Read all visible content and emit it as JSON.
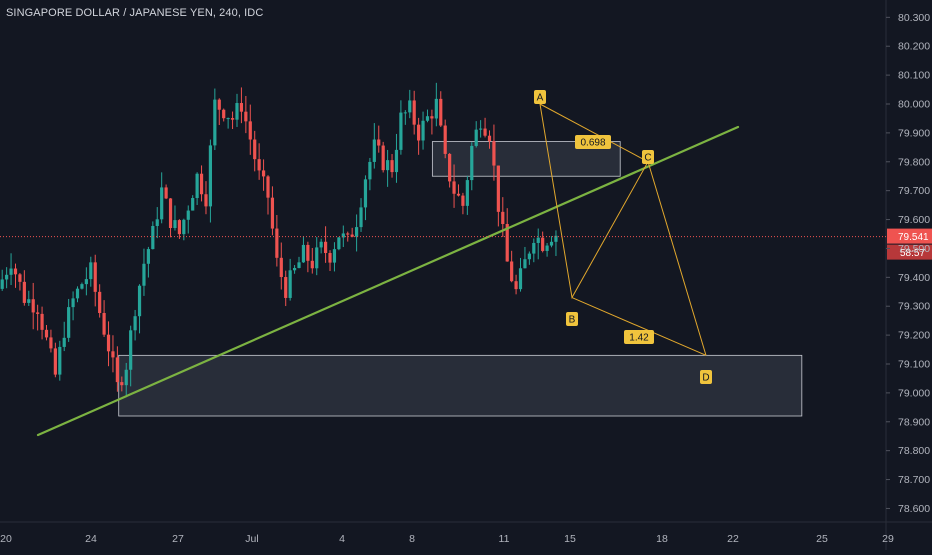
{
  "header": {
    "title": "SINGAPORE DOLLAR / JAPANESE YEN, 240, IDC"
  },
  "colors": {
    "background": "#131722",
    "bull": "#26a69a",
    "bear": "#ef5350",
    "trendline": "#7cb342",
    "pattern": "#e2a82d",
    "label_bg": "#f0c43d",
    "zone_fill": "#3a3f4c",
    "zone_border": "#c9ccd4",
    "axis_text": "#b2b5be",
    "badge": "#ef5350"
  },
  "chart_data": {
    "type": "candlestick",
    "title": "SINGAPORE DOLLAR / JAPANESE YEN, 240, IDC",
    "x_ticks": [
      "20",
      "24",
      "27",
      "Jul",
      "4",
      "8",
      "11",
      "15",
      "18",
      "22",
      "25",
      "29"
    ],
    "y_ticks": [
      "80.300",
      "80.200",
      "80.100",
      "80.000",
      "79.900",
      "79.800",
      "79.700",
      "79.600",
      "79.500",
      "79.400",
      "79.300",
      "79.200",
      "79.100",
      "79.000",
      "78.900",
      "78.800",
      "78.700",
      "78.600"
    ],
    "ylim": [
      78.56,
      80.36
    ],
    "last_price": {
      "value": 79.541,
      "label": "79.541",
      "countdown": "58:57"
    },
    "candles_visible_range": {
      "from": "Jun 19",
      "to": "Jul 16"
    },
    "overall_trend": [
      {
        "x": 0,
        "y": 79.36
      },
      {
        "x": 3,
        "y": 79.46
      },
      {
        "x": 6,
        "y": 79.33
      },
      {
        "x": 9,
        "y": 79.3
      },
      {
        "x": 11,
        "y": 79.18
      },
      {
        "x": 13,
        "y": 79.06
      },
      {
        "x": 15,
        "y": 79.22
      },
      {
        "x": 17,
        "y": 79.32
      },
      {
        "x": 19,
        "y": 79.38
      },
      {
        "x": 21,
        "y": 79.42
      },
      {
        "x": 23,
        "y": 79.28
      },
      {
        "x": 25,
        "y": 79.16
      },
      {
        "x": 27,
        "y": 79.02
      },
      {
        "x": 29,
        "y": 79.1
      },
      {
        "x": 31,
        "y": 79.3
      },
      {
        "x": 33,
        "y": 79.45
      },
      {
        "x": 35,
        "y": 79.55
      },
      {
        "x": 37,
        "y": 79.7
      },
      {
        "x": 39,
        "y": 79.6
      },
      {
        "x": 41,
        "y": 79.55
      },
      {
        "x": 43,
        "y": 79.65
      },
      {
        "x": 45,
        "y": 79.75
      },
      {
        "x": 47,
        "y": 79.68
      },
      {
        "x": 49,
        "y": 80.0
      },
      {
        "x": 51,
        "y": 79.98
      },
      {
        "x": 53,
        "y": 79.95
      },
      {
        "x": 55,
        "y": 80.0
      },
      {
        "x": 57,
        "y": 79.88
      },
      {
        "x": 59,
        "y": 79.75
      },
      {
        "x": 61,
        "y": 79.68
      },
      {
        "x": 63,
        "y": 79.45
      },
      {
        "x": 65,
        "y": 79.36
      },
      {
        "x": 67,
        "y": 79.42
      },
      {
        "x": 69,
        "y": 79.48
      },
      {
        "x": 71,
        "y": 79.45
      },
      {
        "x": 73,
        "y": 79.5
      },
      {
        "x": 75,
        "y": 79.48
      },
      {
        "x": 77,
        "y": 79.55
      },
      {
        "x": 79,
        "y": 79.52
      },
      {
        "x": 81,
        "y": 79.6
      },
      {
        "x": 83,
        "y": 79.75
      },
      {
        "x": 85,
        "y": 79.85
      },
      {
        "x": 87,
        "y": 79.8
      },
      {
        "x": 89,
        "y": 79.78
      },
      {
        "x": 91,
        "y": 79.95
      },
      {
        "x": 93,
        "y": 79.98
      },
      {
        "x": 95,
        "y": 79.9
      },
      {
        "x": 97,
        "y": 79.95
      },
      {
        "x": 99,
        "y": 80.0
      },
      {
        "x": 101,
        "y": 79.8
      },
      {
        "x": 103,
        "y": 79.7
      },
      {
        "x": 105,
        "y": 79.65
      },
      {
        "x": 107,
        "y": 79.85
      },
      {
        "x": 109,
        "y": 79.95
      },
      {
        "x": 111,
        "y": 79.9
      },
      {
        "x": 113,
        "y": 79.65
      },
      {
        "x": 115,
        "y": 79.45
      },
      {
        "x": 117,
        "y": 79.35
      },
      {
        "x": 119,
        "y": 79.45
      },
      {
        "x": 121,
        "y": 79.55
      },
      {
        "x": 123,
        "y": 79.52
      },
      {
        "x": 125,
        "y": 79.55
      }
    ],
    "trendline": {
      "x1": 0,
      "y1": 78.88,
      "x2": 200,
      "y2": 79.95
    },
    "zones": [
      {
        "name": "upper-zone",
        "x1": 97.6,
        "x2": 140,
        "y_top": 79.87,
        "y_bottom": 79.75
      },
      {
        "name": "lower-zone",
        "x1": 26.8,
        "x2": 181,
        "y_top": 79.13,
        "y_bottom": 78.92
      }
    ],
    "harmonic_pattern": {
      "points": [
        {
          "label": "A",
          "x": 100,
          "y": 80.0
        },
        {
          "label": "B",
          "x": 106,
          "y": 79.33
        },
        {
          "label": "C",
          "x": 122,
          "y": 79.8
        },
        {
          "label": "D",
          "x": 138,
          "y": 79.13
        }
      ],
      "ratios": [
        {
          "label": "0.698",
          "between": "A-C"
        },
        {
          "label": "1.42",
          "between": "B-D"
        }
      ]
    }
  }
}
